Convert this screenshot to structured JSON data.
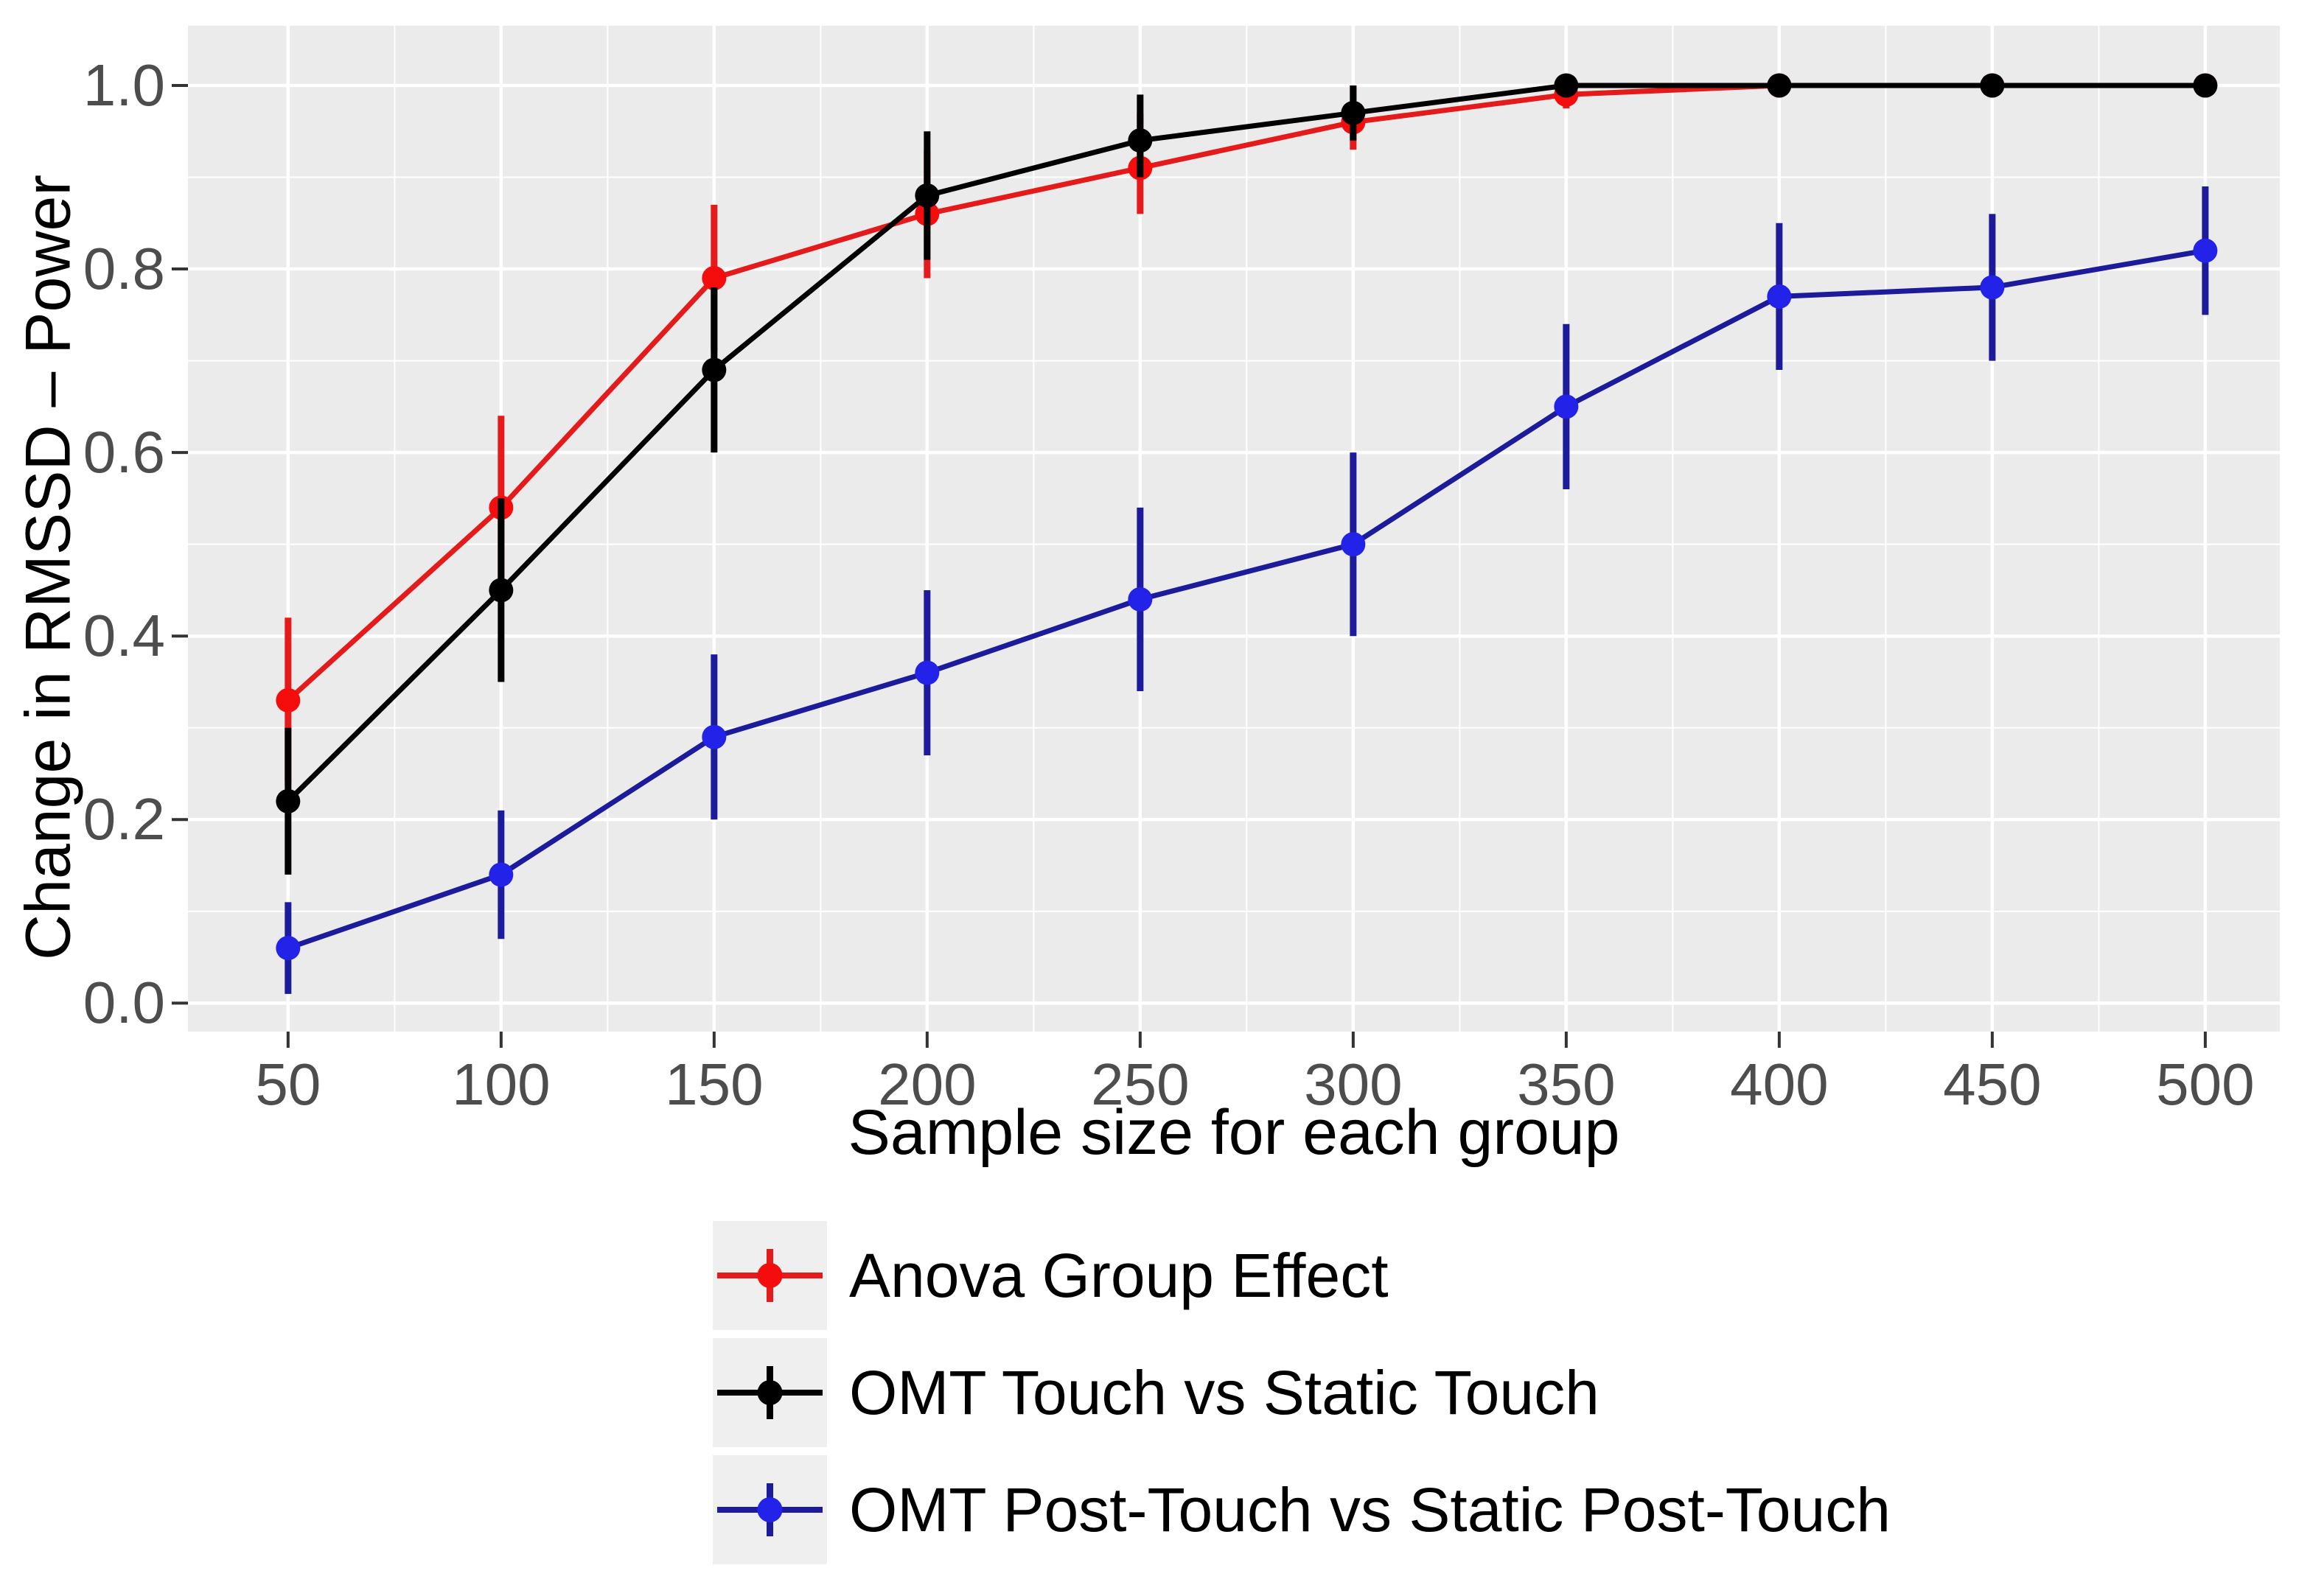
{
  "axes": {
    "x": {
      "label": "Sample size for each group",
      "tick_labels": [
        "50",
        "100",
        "150",
        "200",
        "250",
        "300",
        "350",
        "400",
        "450",
        "500"
      ],
      "tick_values": [
        50,
        100,
        150,
        200,
        250,
        300,
        350,
        400,
        450,
        500
      ],
      "minor_tick_values": [
        75,
        125,
        175,
        225,
        275,
        325,
        375,
        425,
        475
      ],
      "range": [
        26.5,
        517.5
      ]
    },
    "y": {
      "label": "Change in RMSSD – Power",
      "tick_labels": [
        "0.0",
        "0.2",
        "0.4",
        "0.6",
        "0.8",
        "1.0"
      ],
      "tick_values": [
        0.0,
        0.2,
        0.4,
        0.6,
        0.8,
        1.0
      ],
      "minor_tick_values": [
        0.1,
        0.3,
        0.5,
        0.7,
        0.9
      ],
      "range": [
        -0.031,
        1.065
      ]
    }
  },
  "chart_data": {
    "type": "line",
    "xlabel": "Sample size for each group",
    "ylabel": "Change in RMSSD – Power",
    "x": [
      50,
      100,
      150,
      200,
      250,
      300,
      350,
      400,
      450,
      500
    ],
    "xlim": [
      26.5,
      517.5
    ],
    "ylim": [
      -0.031,
      1.065
    ],
    "grid": "major+minor",
    "error_bars": true,
    "legend_position": "bottom-left",
    "series": [
      {
        "name": "Anova Group Effect",
        "line_color": "#E51A1A",
        "point_color": "#F50D0D",
        "values": [
          0.33,
          0.54,
          0.79,
          0.86,
          0.91,
          0.96,
          0.99,
          1.0,
          1.0,
          1.0
        ],
        "lower": [
          0.24,
          0.44,
          0.71,
          0.79,
          0.86,
          0.93,
          0.975,
          1.0,
          1.0,
          1.0
        ],
        "upper": [
          0.42,
          0.64,
          0.87,
          0.93,
          0.97,
          1.0,
          1.0,
          1.0,
          1.0,
          1.0
        ]
      },
      {
        "name": "OMT Touch vs Static Touch",
        "line_color": "#000000",
        "point_color": "#000000",
        "values": [
          0.22,
          0.45,
          0.69,
          0.88,
          0.94,
          0.97,
          1.0,
          1.0,
          1.0,
          1.0
        ],
        "lower": [
          0.14,
          0.35,
          0.6,
          0.81,
          0.9,
          0.94,
          0.995,
          1.0,
          1.0,
          1.0
        ],
        "upper": [
          0.3,
          0.55,
          0.78,
          0.95,
          0.99,
          1.0,
          1.0,
          1.0,
          1.0,
          1.0
        ]
      },
      {
        "name": "OMT Post-Touch vs Static Post-Touch",
        "line_color": "#1B1B9C",
        "point_color": "#2222E8",
        "values": [
          0.06,
          0.14,
          0.29,
          0.36,
          0.44,
          0.5,
          0.65,
          0.77,
          0.78,
          0.82
        ],
        "lower": [
          0.01,
          0.07,
          0.2,
          0.27,
          0.34,
          0.4,
          0.56,
          0.69,
          0.7,
          0.75
        ],
        "upper": [
          0.11,
          0.21,
          0.38,
          0.45,
          0.54,
          0.6,
          0.74,
          0.85,
          0.86,
          0.89
        ]
      }
    ]
  },
  "colors": {
    "background": "#FFFFFF",
    "panel_bg": "#EBEBEB",
    "grid_major": "#FFFFFF",
    "grid_minor": "#FFFFFF",
    "tick_mark": "#333333",
    "tick_label": "#4D4D4D",
    "axis_title": "#000000",
    "legend_key_bg": "#EFEFEF",
    "legend_text": "#000000"
  }
}
